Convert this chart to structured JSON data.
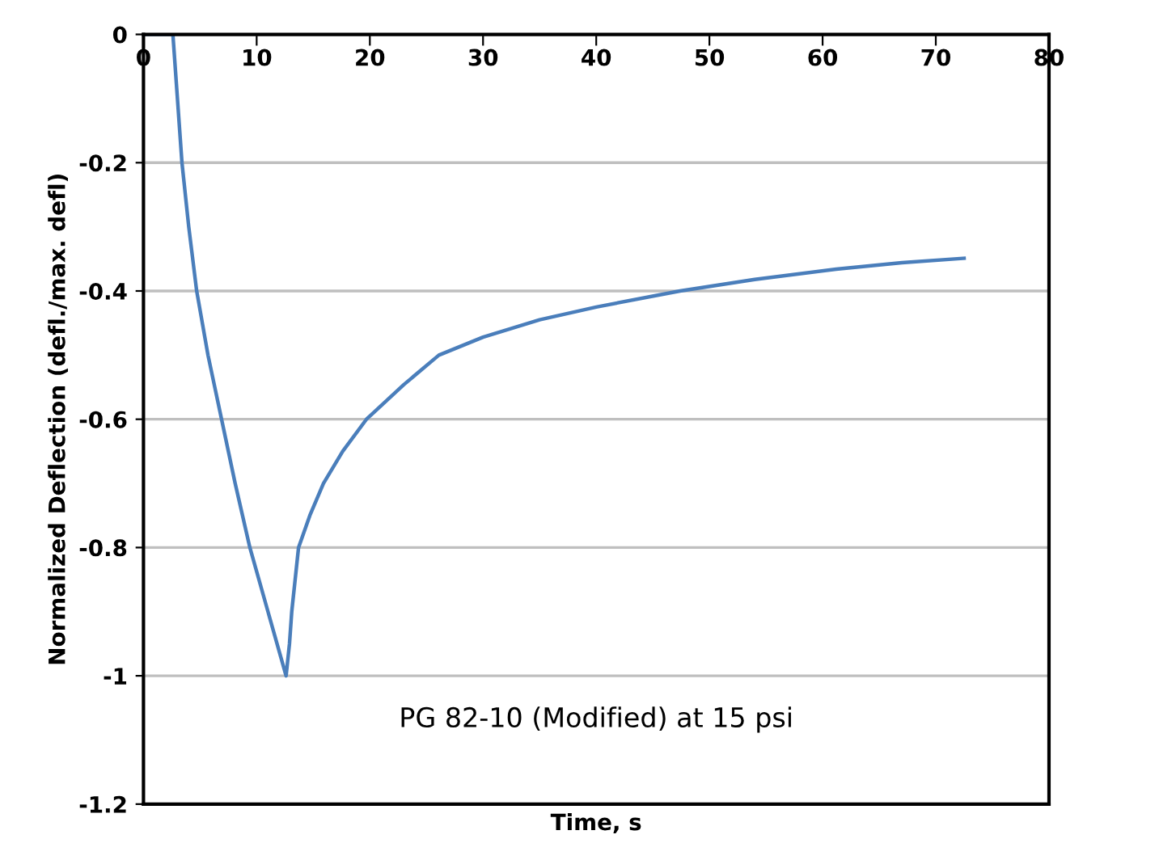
{
  "chart_data": {
    "type": "line",
    "xlabel": "Time, s",
    "ylabel": "Normalized Deflection (defl./max. defl)",
    "annotations": [
      "PG 82-10 (Modified) at 15 psi"
    ],
    "x": [
      0,
      2.6,
      3.0,
      3.4,
      4.0,
      4.7,
      5.7,
      6.9,
      8.1,
      9.4,
      11.0,
      12.6,
      12.9,
      13.1,
      13.7,
      14.7,
      15.9,
      17.6,
      19.7,
      23.0,
      26.1,
      30.0,
      35.0,
      40.0,
      47.4,
      54.0,
      61.2,
      67.0,
      72.5
    ],
    "series": [
      {
        "color": "#4a7ebb",
        "values": [
          0,
          0,
          -0.1,
          -0.2,
          -0.3,
          -0.4,
          -0.5,
          -0.6,
          -0.7,
          -0.8,
          -0.9,
          -1,
          -0.95,
          -0.9,
          -0.8,
          -0.75,
          -0.7,
          -0.65,
          -0.6,
          -0.546,
          -0.5,
          -0.472,
          -0.445,
          -0.425,
          -0.4,
          -0.382,
          -0.366,
          -0.356,
          -0.349
        ]
      }
    ],
    "xlim": [
      0,
      80
    ],
    "xticks": [
      0,
      10,
      20,
      30,
      40,
      50,
      60,
      70,
      80
    ],
    "ylim": [
      -1.2,
      0
    ],
    "yticks": [
      -1.2,
      -1,
      -0.8,
      -0.6,
      -0.4,
      -0.2,
      0
    ],
    "grid": "y",
    "line_style": "solid",
    "marker": "none"
  }
}
